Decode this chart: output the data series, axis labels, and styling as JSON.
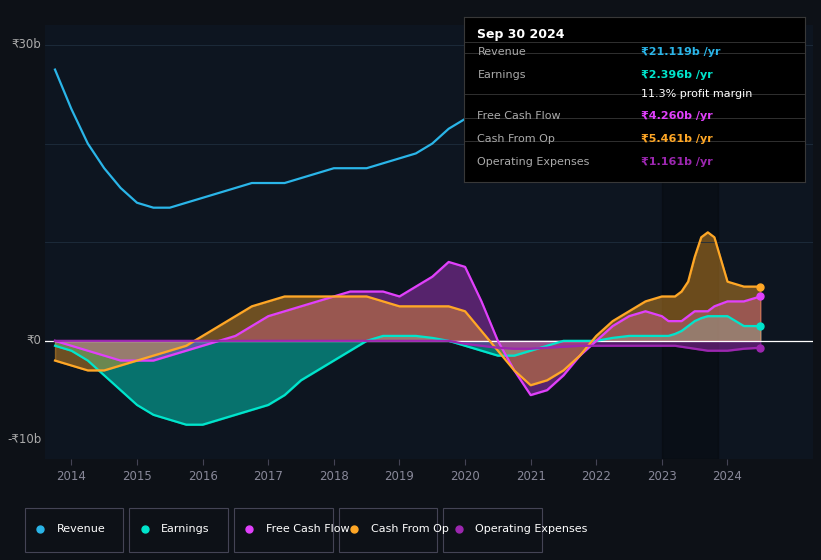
{
  "bg_color": "#0d1117",
  "plot_bg_color": "#0d1520",
  "ylim": [
    -12,
    32
  ],
  "xlim": [
    2013.6,
    2025.3
  ],
  "xticks": [
    2014,
    2015,
    2016,
    2017,
    2018,
    2019,
    2020,
    2021,
    2022,
    2023,
    2024
  ],
  "ytick_labels": [
    "₹30b",
    "₹0",
    "-₹10b"
  ],
  "ytick_values": [
    30,
    0,
    -10
  ],
  "colors": {
    "revenue": "#2ab5e8",
    "earnings": "#00e5cc",
    "free_cash_flow": "#e040fb",
    "cash_from_op": "#ffa726",
    "operating_expenses": "#9c27b0"
  },
  "info_box": {
    "title": "Sep 30 2024",
    "rows": [
      {
        "label": "Revenue",
        "value": "₹21.119b /yr",
        "value_color": "#2ab5e8",
        "has_sep_above": false
      },
      {
        "label": "Earnings",
        "value": "₹2.396b /yr",
        "value_color": "#00e5cc",
        "has_sep_above": true
      },
      {
        "label": "",
        "value": "11.3% profit margin",
        "value_color": "#ffffff",
        "has_sep_above": false
      },
      {
        "label": "Free Cash Flow",
        "value": "₹4.260b /yr",
        "value_color": "#e040fb",
        "has_sep_above": true
      },
      {
        "label": "Cash From Op",
        "value": "₹5.461b /yr",
        "value_color": "#ffa726",
        "has_sep_above": true
      },
      {
        "label": "Operating Expenses",
        "value": "₹1.161b /yr",
        "value_color": "#9c27b0",
        "has_sep_above": true
      }
    ]
  },
  "legend": [
    {
      "label": "Revenue",
      "color": "#2ab5e8"
    },
    {
      "label": "Earnings",
      "color": "#00e5cc"
    },
    {
      "label": "Free Cash Flow",
      "color": "#e040fb"
    },
    {
      "label": "Cash From Op",
      "color": "#ffa726"
    },
    {
      "label": "Operating Expenses",
      "color": "#9c27b0"
    }
  ],
  "years": [
    2013.75,
    2014.0,
    2014.25,
    2014.5,
    2014.75,
    2015.0,
    2015.25,
    2015.5,
    2015.75,
    2016.0,
    2016.25,
    2016.5,
    2016.75,
    2017.0,
    2017.25,
    2017.5,
    2017.75,
    2018.0,
    2018.25,
    2018.5,
    2018.75,
    2019.0,
    2019.25,
    2019.5,
    2019.75,
    2020.0,
    2020.25,
    2020.5,
    2020.75,
    2021.0,
    2021.25,
    2021.5,
    2021.75,
    2022.0,
    2022.25,
    2022.5,
    2022.75,
    2023.0,
    2023.1,
    2023.2,
    2023.3,
    2023.4,
    2023.5,
    2023.6,
    2023.7,
    2023.8,
    2024.0,
    2024.25,
    2024.5
  ],
  "revenue": [
    27.5,
    23.5,
    20.0,
    17.5,
    15.5,
    14.0,
    13.5,
    13.5,
    14.0,
    14.5,
    15.0,
    15.5,
    16.0,
    16.0,
    16.0,
    16.5,
    17.0,
    17.5,
    17.5,
    17.5,
    18.0,
    18.5,
    19.0,
    20.0,
    21.5,
    22.5,
    20.5,
    18.5,
    17.0,
    16.5,
    16.5,
    17.0,
    17.5,
    18.0,
    19.0,
    20.0,
    21.0,
    22.0,
    22.5,
    23.0,
    24.0,
    25.0,
    26.5,
    27.5,
    24.0,
    22.0,
    22.0,
    21.5,
    21.0
  ],
  "earnings": [
    -0.5,
    -1.0,
    -2.0,
    -3.5,
    -5.0,
    -6.5,
    -7.5,
    -8.0,
    -8.5,
    -8.5,
    -8.0,
    -7.5,
    -7.0,
    -6.5,
    -5.5,
    -4.0,
    -3.0,
    -2.0,
    -1.0,
    0.0,
    0.5,
    0.5,
    0.5,
    0.3,
    0.0,
    -0.5,
    -1.0,
    -1.5,
    -1.5,
    -1.0,
    -0.5,
    0.0,
    0.0,
    0.0,
    0.3,
    0.5,
    0.5,
    0.5,
    0.5,
    0.7,
    1.0,
    1.5,
    2.0,
    2.3,
    2.5,
    2.5,
    2.5,
    1.5,
    1.5
  ],
  "free_cash_flow": [
    0.0,
    -0.5,
    -1.0,
    -1.5,
    -2.0,
    -2.0,
    -2.0,
    -1.5,
    -1.0,
    -0.5,
    0.0,
    0.5,
    1.5,
    2.5,
    3.0,
    3.5,
    4.0,
    4.5,
    5.0,
    5.0,
    5.0,
    4.5,
    5.5,
    6.5,
    8.0,
    7.5,
    4.0,
    0.0,
    -3.0,
    -5.5,
    -5.0,
    -3.5,
    -1.5,
    0.0,
    1.5,
    2.5,
    3.0,
    2.5,
    2.0,
    2.0,
    2.0,
    2.5,
    3.0,
    3.0,
    3.0,
    3.5,
    4.0,
    4.0,
    4.5
  ],
  "cash_from_op": [
    -2.0,
    -2.5,
    -3.0,
    -3.0,
    -2.5,
    -2.0,
    -1.5,
    -1.0,
    -0.5,
    0.5,
    1.5,
    2.5,
    3.5,
    4.0,
    4.5,
    4.5,
    4.5,
    4.5,
    4.5,
    4.5,
    4.0,
    3.5,
    3.5,
    3.5,
    3.5,
    3.0,
    1.0,
    -1.0,
    -3.0,
    -4.5,
    -4.0,
    -3.0,
    -1.5,
    0.5,
    2.0,
    3.0,
    4.0,
    4.5,
    4.5,
    4.5,
    5.0,
    6.0,
    8.5,
    10.5,
    11.0,
    10.5,
    6.0,
    5.5,
    5.5
  ],
  "operating_expenses": [
    0.0,
    0.0,
    0.0,
    0.0,
    0.0,
    0.0,
    0.0,
    0.0,
    0.0,
    0.0,
    0.0,
    0.0,
    0.0,
    0.0,
    0.0,
    0.0,
    0.0,
    0.0,
    0.0,
    0.0,
    0.0,
    0.0,
    0.0,
    0.0,
    0.0,
    -0.3,
    -0.5,
    -0.7,
    -0.8,
    -0.8,
    -0.7,
    -0.6,
    -0.5,
    -0.5,
    -0.5,
    -0.5,
    -0.5,
    -0.5,
    -0.5,
    -0.5,
    -0.6,
    -0.7,
    -0.8,
    -0.9,
    -1.0,
    -1.0,
    -1.0,
    -0.8,
    -0.7
  ]
}
